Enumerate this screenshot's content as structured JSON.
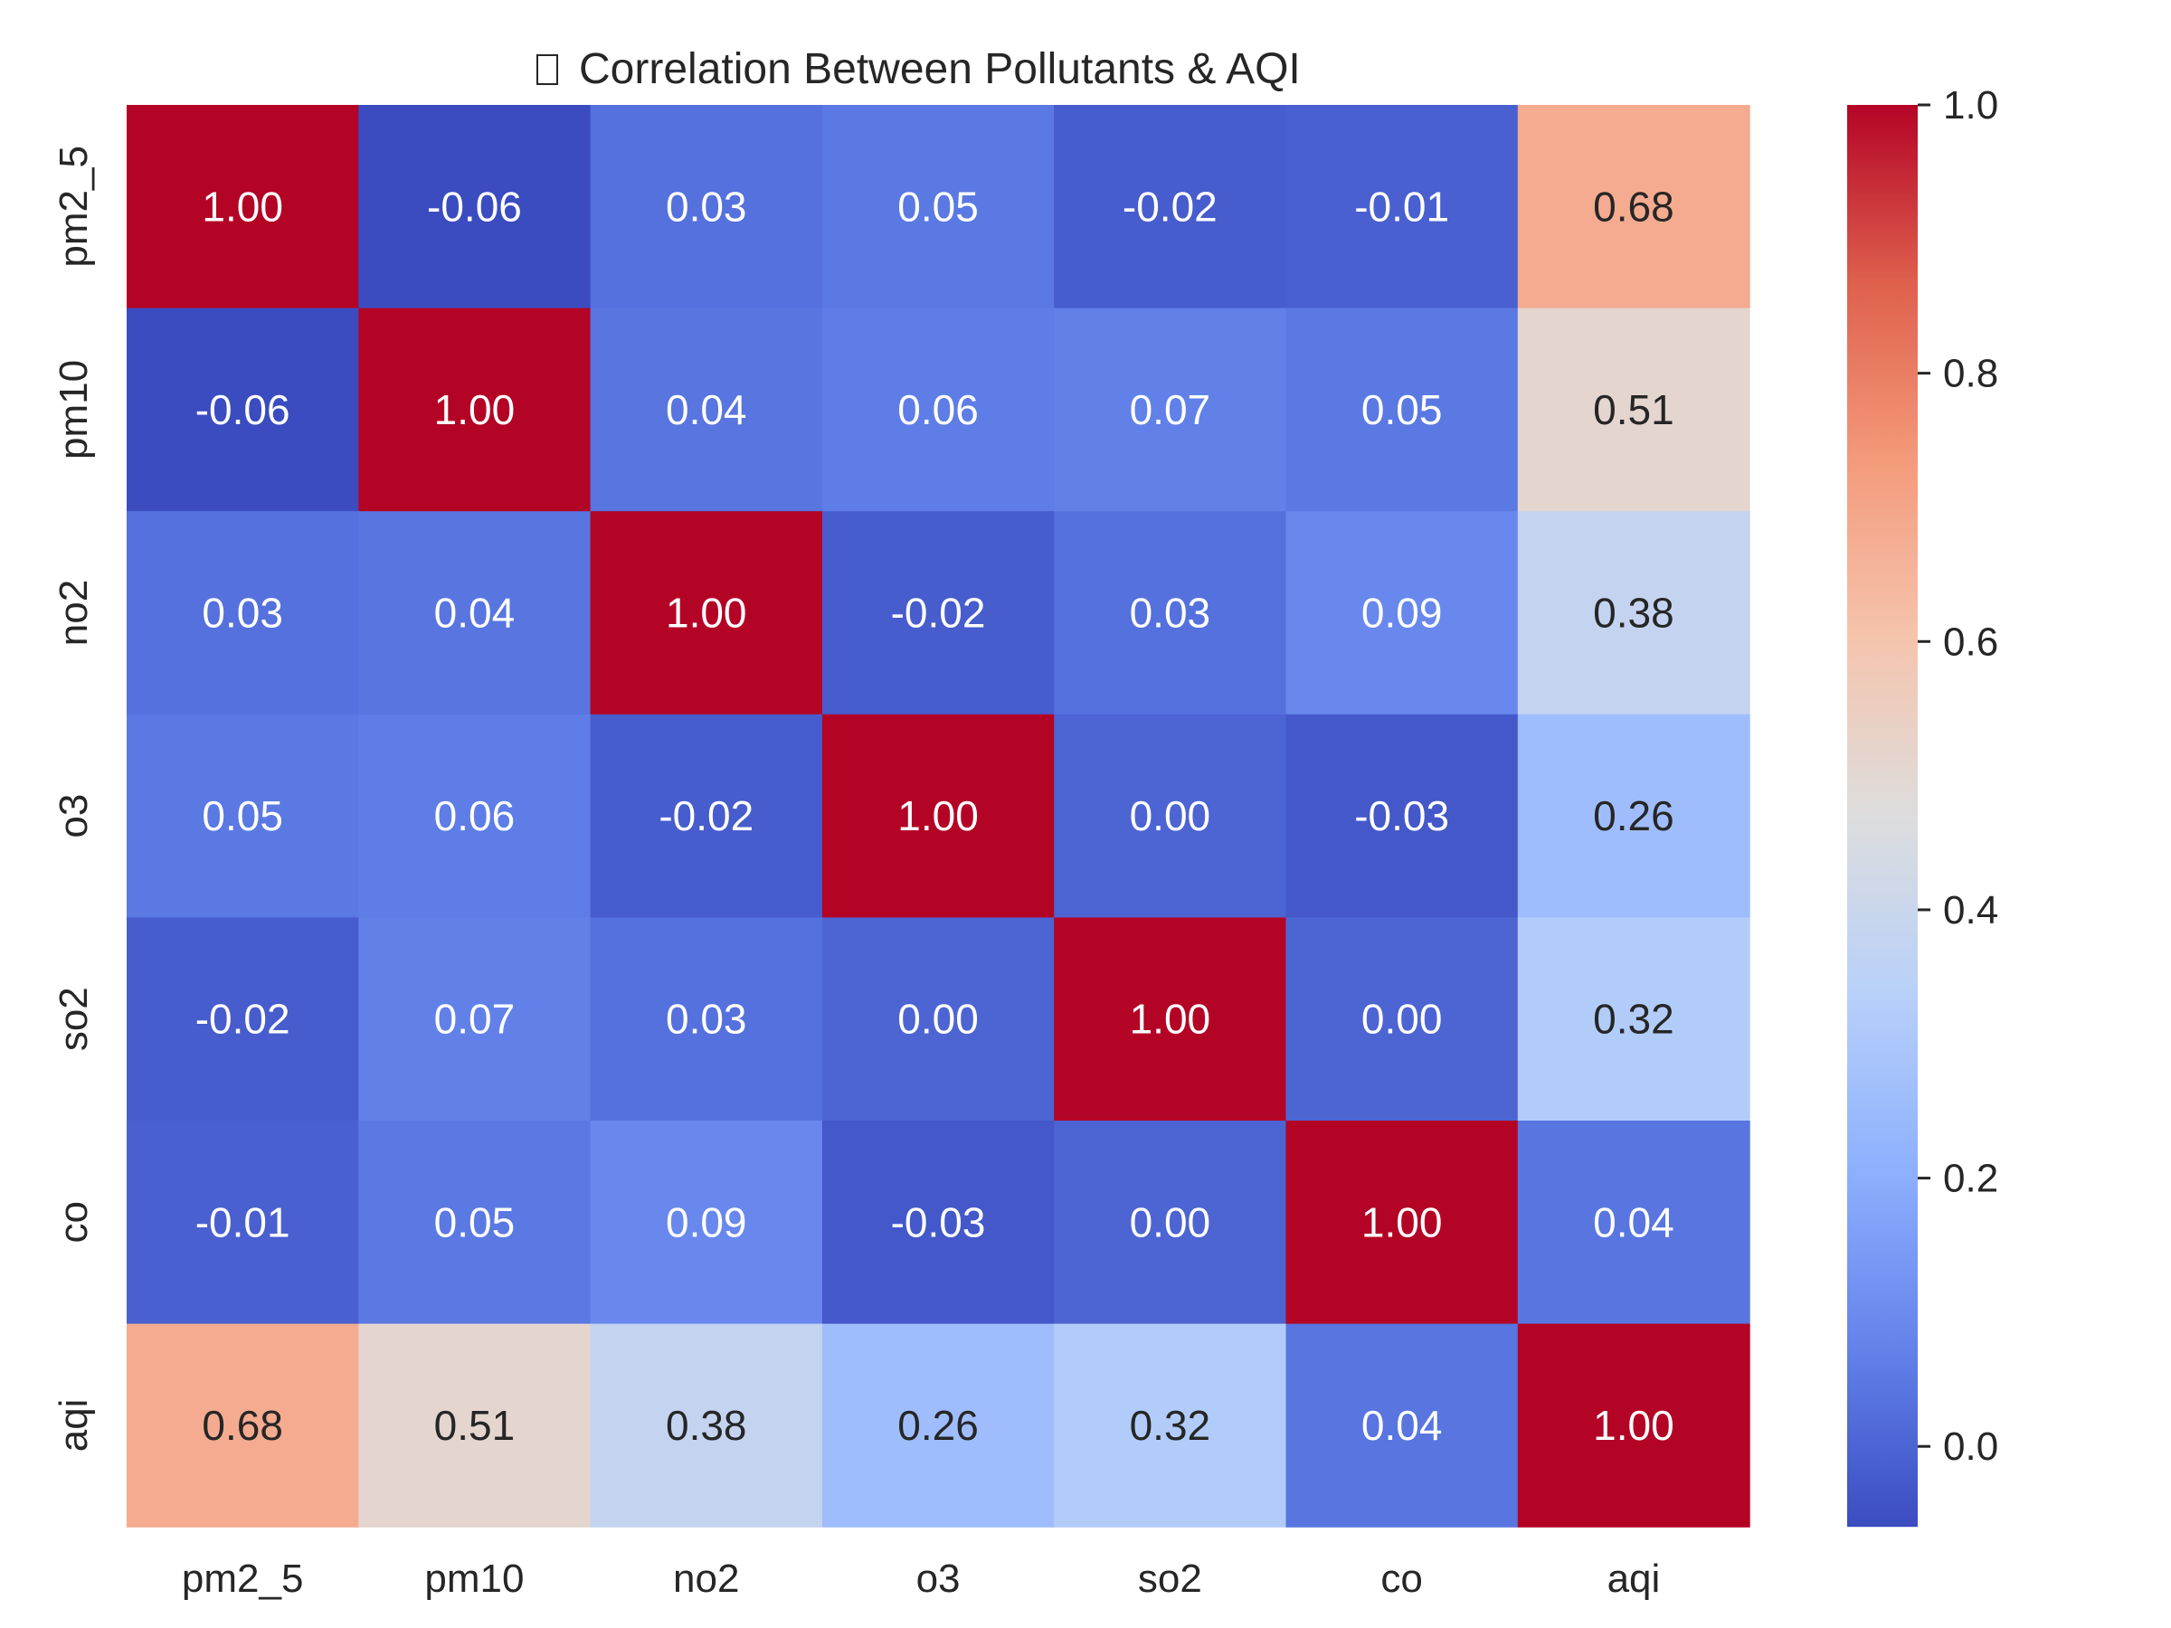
{
  "chart_data": {
    "type": "heatmap",
    "title": "Correlation Between Pollutants & AQI",
    "title_icon": "missing-glyph-box",
    "rows": [
      "pm2_5",
      "pm10",
      "no2",
      "o3",
      "so2",
      "co",
      "aqi"
    ],
    "columns": [
      "pm2_5",
      "pm10",
      "no2",
      "o3",
      "so2",
      "co",
      "aqi"
    ],
    "values": [
      [
        1.0,
        -0.06,
        0.03,
        0.05,
        -0.02,
        -0.01,
        0.68
      ],
      [
        -0.06,
        1.0,
        0.04,
        0.06,
        0.07,
        0.05,
        0.51
      ],
      [
        0.03,
        0.04,
        1.0,
        -0.02,
        0.03,
        0.09,
        0.38
      ],
      [
        0.05,
        0.06,
        -0.02,
        1.0,
        0.0,
        -0.03,
        0.26
      ],
      [
        -0.02,
        0.07,
        0.03,
        0.0,
        1.0,
        0.0,
        0.32
      ],
      [
        -0.01,
        0.05,
        0.09,
        -0.03,
        0.0,
        1.0,
        0.04
      ],
      [
        0.68,
        0.51,
        0.38,
        0.26,
        0.32,
        0.04,
        1.0
      ]
    ],
    "value_format": "2 decimals",
    "colormap": "coolwarm",
    "color_range": [
      -0.06,
      1.0
    ],
    "colorbar_ticks": [
      "0.0",
      "0.2",
      "0.4",
      "0.6",
      "0.8",
      "1.0"
    ],
    "colorbar_tick_values": [
      0.0,
      0.2,
      0.4,
      0.6,
      0.8,
      1.0
    ],
    "colorbar_position": "right",
    "grid": false
  }
}
